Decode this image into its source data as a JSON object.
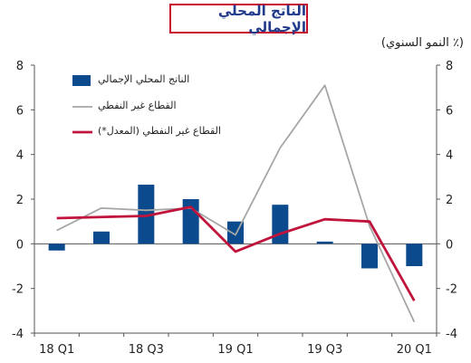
{
  "chart_data": {
    "type": "bar+line",
    "title": "الناتج المحلي الإجمالي",
    "unit_label": "(٪ النمو السنوي)",
    "categories": [
      "18 Q1",
      "18 Q2",
      "18 Q3",
      "18 Q4",
      "19 Q1",
      "19 Q2",
      "19 Q3",
      "19 Q4",
      "20 Q1"
    ],
    "x_tick_labels": [
      "18 Q1",
      "18 Q3",
      "19 Q1",
      "19 Q3",
      "20 Q1"
    ],
    "y_ticks": [
      -4,
      -2,
      0,
      2,
      4,
      6,
      8
    ],
    "ylim": [
      -4,
      8
    ],
    "grid": false,
    "legend_position": "top-left",
    "series": [
      {
        "name": "الناتج المحلي الإجمالي",
        "kind": "bar",
        "color": "#0b4a8c",
        "values": [
          -0.3,
          0.55,
          2.65,
          2.0,
          1.0,
          1.75,
          0.1,
          -1.1,
          -1.0
        ]
      },
      {
        "name": "القطاع غير النفطي",
        "kind": "line",
        "color": "#a6a6a6",
        "values": [
          0.6,
          1.6,
          1.5,
          1.6,
          0.4,
          4.3,
          7.1,
          0.8,
          -3.5
        ]
      },
      {
        "name": "القطاع غير النفطي (المعدل*)",
        "kind": "line",
        "color": "#c0143c",
        "values": [
          1.15,
          1.2,
          1.25,
          1.65,
          -0.35,
          0.45,
          1.1,
          1.0,
          -2.55
        ]
      }
    ]
  }
}
